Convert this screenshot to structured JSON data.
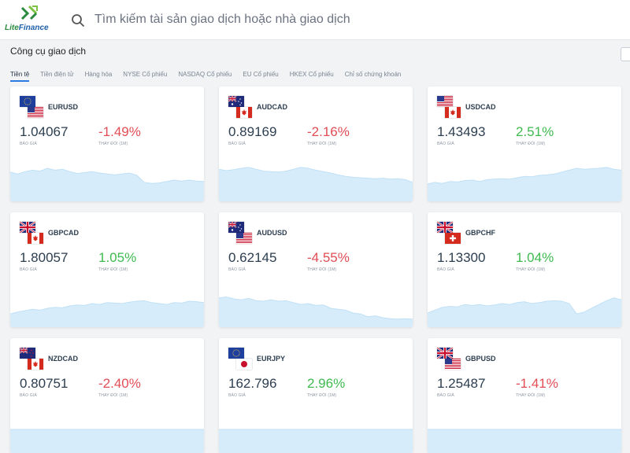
{
  "header": {
    "logo_text_lite": "Lite",
    "logo_text_finance": "Finance",
    "search_placeholder": "Tìm kiếm tài sản giao dịch hoặc nhà giao dịch"
  },
  "section": {
    "title": "Công cụ giao dịch",
    "tabs": [
      {
        "label": "Tiền tệ",
        "active": true
      },
      {
        "label": "Tiền điện tử",
        "active": false
      },
      {
        "label": "Hàng hóa",
        "active": false
      },
      {
        "label": "NYSE Cổ phiếu",
        "active": false
      },
      {
        "label": "NASDAQ Cổ phiếu",
        "active": false
      },
      {
        "label": "EU Cổ phiếu",
        "active": false
      },
      {
        "label": "HKEX Cổ phiếu",
        "active": false
      },
      {
        "label": "Chỉ số chứng khoán",
        "active": false
      }
    ]
  },
  "labels": {
    "price_label": "BÁO GIÁ",
    "change_label": "THAY ĐỔI (1M)"
  },
  "colors": {
    "negative": "#e14d55",
    "positive": "#3fb950",
    "sparkline_fill": "#d7ecfa",
    "active_tab": "#2c7be5"
  },
  "cards": [
    {
      "symbol": "EURUSD",
      "base_flag": "eu-flag",
      "quote_flag": "us-flag",
      "price": "1.04067",
      "change": "-1.49%",
      "direction": "neg",
      "spark": [
        0.62,
        0.58,
        0.63,
        0.66,
        0.64,
        0.7,
        0.66,
        0.68,
        0.63,
        0.59,
        0.61,
        0.63,
        0.6,
        0.58,
        0.56,
        0.58,
        0.6,
        0.55,
        0.4,
        0.38,
        0.39,
        0.42,
        0.45,
        0.43,
        0.45,
        0.43,
        0.42
      ]
    },
    {
      "symbol": "AUDCAD",
      "base_flag": "au-flag",
      "quote_flag": "ca-flag",
      "price": "0.89169",
      "change": "-2.16%",
      "direction": "neg",
      "spark": [
        0.68,
        0.65,
        0.67,
        0.7,
        0.72,
        0.68,
        0.64,
        0.63,
        0.62,
        0.64,
        0.68,
        0.72,
        0.7,
        0.66,
        0.63,
        0.6,
        0.56,
        0.53,
        0.51,
        0.5,
        0.49,
        0.48,
        0.49,
        0.47,
        0.48,
        0.46,
        0.4
      ]
    },
    {
      "symbol": "USDCAD",
      "base_flag": "us-flag",
      "quote_flag": "ca-flag",
      "price": "1.43493",
      "change": "2.51%",
      "direction": "pos",
      "spark": [
        0.37,
        0.4,
        0.38,
        0.42,
        0.41,
        0.44,
        0.45,
        0.42,
        0.46,
        0.47,
        0.48,
        0.47,
        0.5,
        0.53,
        0.52,
        0.55,
        0.56,
        0.58,
        0.62,
        0.66,
        0.7,
        0.68,
        0.69,
        0.7,
        0.72,
        0.68,
        0.66
      ]
    },
    {
      "symbol": "GBPCAD",
      "base_flag": "gb-flag",
      "quote_flag": "ca-flag",
      "price": "1.80057",
      "change": "1.05%",
      "direction": "pos",
      "spark": [
        0.28,
        0.32,
        0.35,
        0.38,
        0.36,
        0.4,
        0.42,
        0.41,
        0.45,
        0.47,
        0.46,
        0.5,
        0.48,
        0.52,
        0.51,
        0.5,
        0.53,
        0.55,
        0.56,
        0.52,
        0.5,
        0.48,
        0.52,
        0.51,
        0.55,
        0.54,
        0.52
      ]
    },
    {
      "symbol": "AUDUSD",
      "base_flag": "au-flag",
      "quote_flag": "us-flag",
      "price": "0.62145",
      "change": "-4.55%",
      "direction": "neg",
      "spark": [
        0.62,
        0.64,
        0.6,
        0.58,
        0.61,
        0.56,
        0.55,
        0.58,
        0.55,
        0.56,
        0.52,
        0.48,
        0.5,
        0.46,
        0.47,
        0.4,
        0.38,
        0.36,
        0.3,
        0.28,
        0.22,
        0.24,
        0.2,
        0.18,
        0.17,
        0.18,
        0.17
      ]
    },
    {
      "symbol": "GBPCHF",
      "base_flag": "gb-flag",
      "quote_flag": "ch-flag",
      "price": "1.13300",
      "change": "1.04%",
      "direction": "pos",
      "spark": [
        0.3,
        0.36,
        0.42,
        0.44,
        0.43,
        0.48,
        0.46,
        0.48,
        0.45,
        0.47,
        0.5,
        0.48,
        0.52,
        0.54,
        0.5,
        0.52,
        0.55,
        0.56,
        0.55,
        0.5,
        0.28,
        0.32,
        0.4,
        0.48,
        0.56,
        0.62,
        0.58
      ]
    },
    {
      "symbol": "NZDCAD",
      "base_flag": "nz-flag",
      "quote_flag": "ca-flag",
      "price": "0.80751",
      "change": "-2.40%",
      "direction": "neg",
      "spark": [
        0.5,
        0.5,
        0.5,
        0.5
      ]
    },
    {
      "symbol": "EURJPY",
      "base_flag": "eu-flag",
      "quote_flag": "jp-flag",
      "price": "162.796",
      "change": "2.96%",
      "direction": "pos",
      "spark": [
        0.5,
        0.5,
        0.5,
        0.5
      ]
    },
    {
      "symbol": "GBPUSD",
      "base_flag": "gb-flag",
      "quote_flag": "us-flag",
      "price": "1.25487",
      "change": "-1.41%",
      "direction": "neg",
      "spark": [
        0.5,
        0.5,
        0.5,
        0.5
      ]
    }
  ]
}
